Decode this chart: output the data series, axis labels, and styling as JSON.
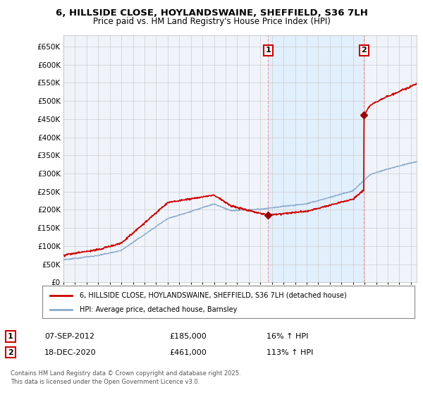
{
  "title_line1": "6, HILLSIDE CLOSE, HOYLANDSWAINE, SHEFFIELD, S36 7LH",
  "title_line2": "Price paid vs. HM Land Registry's House Price Index (HPI)",
  "ylim": [
    0,
    680000
  ],
  "yticks": [
    0,
    50000,
    100000,
    150000,
    200000,
    250000,
    300000,
    350000,
    400000,
    450000,
    500000,
    550000,
    600000,
    650000
  ],
  "ytick_labels": [
    "£0",
    "£50K",
    "£100K",
    "£150K",
    "£200K",
    "£250K",
    "£300K",
    "£350K",
    "£400K",
    "£450K",
    "£500K",
    "£550K",
    "£600K",
    "£650K"
  ],
  "sale1_date_num": 2012.68,
  "sale1_price": 185000,
  "sale1_label": "1",
  "sale1_date_str": "07-SEP-2012",
  "sale1_price_str": "£185,000",
  "sale1_hpi_str": "16% ↑ HPI",
  "sale2_date_num": 2020.96,
  "sale2_price": 461000,
  "sale2_label": "2",
  "sale2_date_str": "18-DEC-2020",
  "sale2_price_str": "£461,000",
  "sale2_hpi_str": "113% ↑ HPI",
  "red_line_color": "#cc0000",
  "blue_line_color": "#88aacc",
  "shade_color": "#ddeeff",
  "marker_color": "#990000",
  "label_box_color": "#cc0000",
  "grid_color": "#cccccc",
  "bg_color": "#ffffff",
  "plot_bg_color": "#f0f4fa",
  "legend_label1": "6, HILLSIDE CLOSE, HOYLANDSWAINE, SHEFFIELD, S36 7LH (detached house)",
  "legend_label2": "HPI: Average price, detached house, Barnsley",
  "footnote": "Contains HM Land Registry data © Crown copyright and database right 2025.\nThis data is licensed under the Open Government Licence v3.0.",
  "shade_start": 2012.68,
  "shade_end": 2020.96,
  "xlim_start": 1995,
  "xlim_end": 2025.5
}
